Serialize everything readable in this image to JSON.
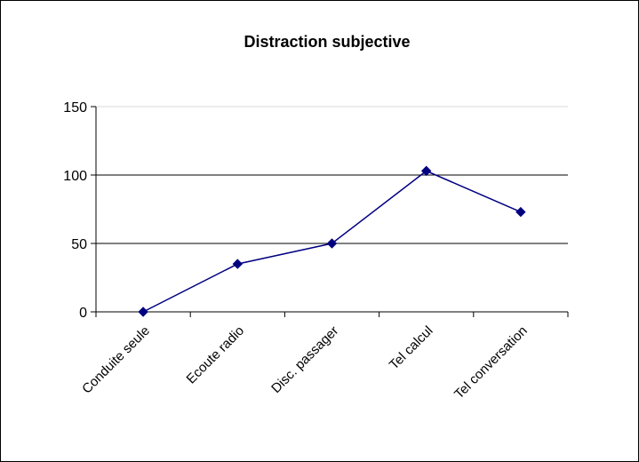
{
  "chart_data": {
    "type": "line",
    "title": "Distraction subjective",
    "xlabel": "",
    "ylabel": "",
    "categories": [
      "Conduite seule",
      "Ecoute radio",
      "Disc. passager",
      "Tel calcul",
      "Tel conversation"
    ],
    "series": [
      {
        "values": [
          0,
          35,
          50,
          103,
          73
        ]
      }
    ],
    "ylim": [
      0,
      150
    ],
    "yticks": [
      0,
      50,
      100,
      150
    ],
    "grid": true,
    "legend": "none",
    "colors": {
      "line": "#000080",
      "marker": "#000080",
      "grid": "#000000",
      "top_grid": "#d9d9d9",
      "axis": "#000000"
    }
  }
}
